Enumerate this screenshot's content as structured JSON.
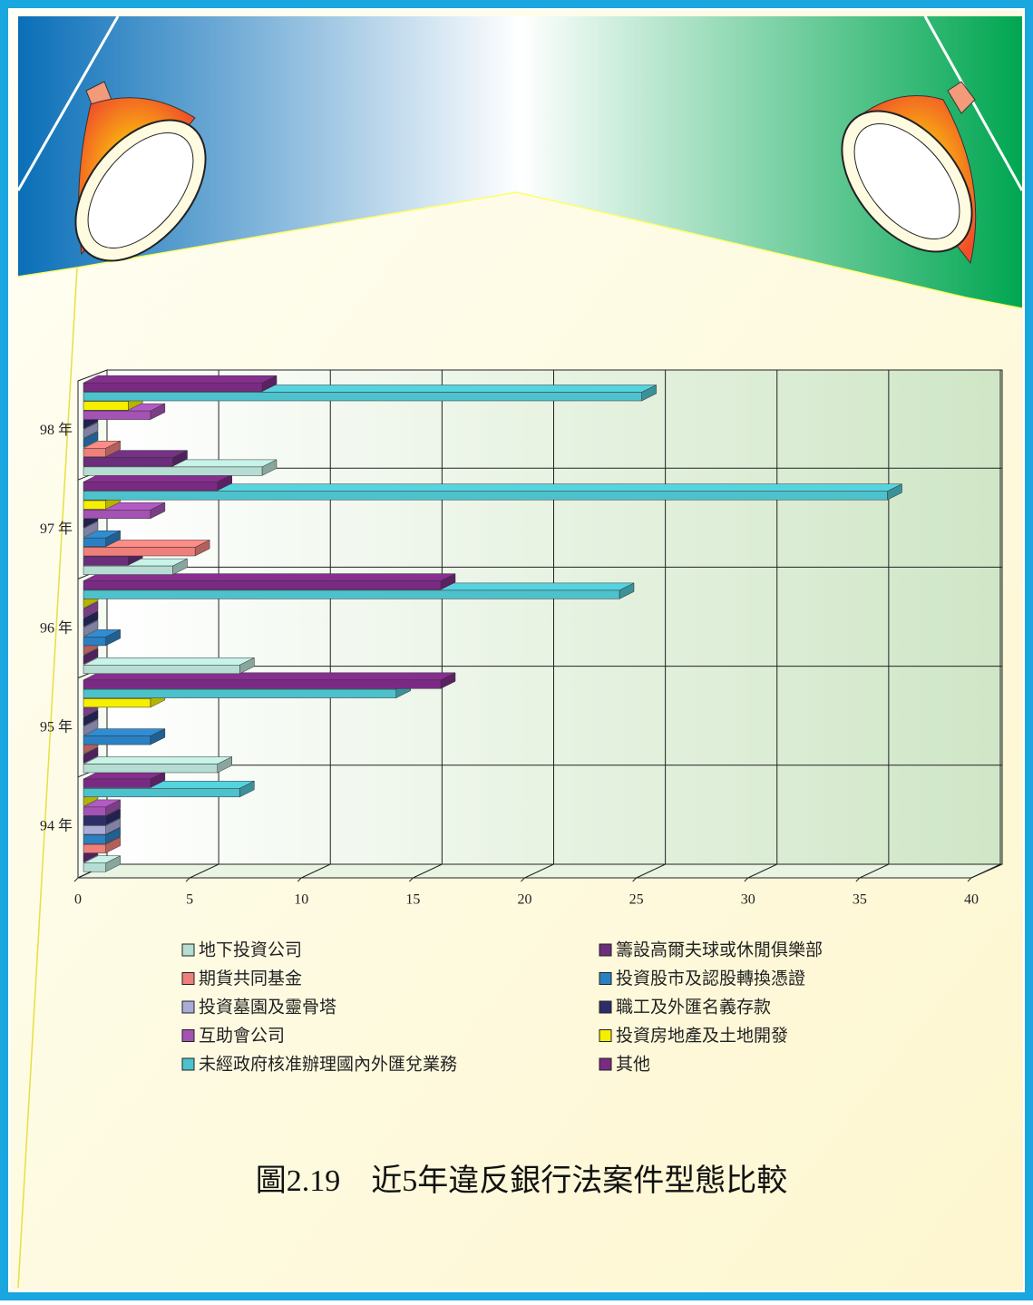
{
  "chart_data": {
    "type": "bar",
    "orientation": "horizontal",
    "title": "圖2.19　近5年違反銀行法案件型態比較",
    "categories": [
      "94 年",
      "95 年",
      "96 年",
      "97 年",
      "98 年"
    ],
    "series": [
      {
        "name": "地下投資公司",
        "color": "#b5ddd3",
        "values": [
          1,
          6,
          7,
          4,
          8
        ]
      },
      {
        "name": "籌設高爾夫球或休閒俱樂部",
        "color": "#6b2d7c",
        "values": [
          0,
          0,
          0,
          2,
          4
        ]
      },
      {
        "name": "期貨共同基金",
        "color": "#ee7f7a",
        "values": [
          1,
          0,
          0,
          5,
          1
        ]
      },
      {
        "name": "投資股市及認股轉換憑證",
        "color": "#2a80c2",
        "values": [
          1,
          3,
          1,
          1,
          0
        ]
      },
      {
        "name": "投資墓園及靈骨塔",
        "color": "#a9abd9",
        "values": [
          1,
          0,
          0,
          0,
          0
        ]
      },
      {
        "name": "職工及外匯名義存款",
        "color": "#2d2d6b",
        "values": [
          1,
          0,
          0,
          0,
          0
        ]
      },
      {
        "name": "互助會公司",
        "color": "#a452b3",
        "values": [
          1,
          0,
          0,
          3,
          3
        ]
      },
      {
        "name": "投資房地產及土地開發",
        "color": "#f4f000",
        "values": [
          0,
          3,
          0,
          1,
          2
        ]
      },
      {
        "name": "未經政府核准辦理國內外匯兌業務",
        "color": "#4dc1cc",
        "values": [
          7,
          14,
          24,
          36,
          25
        ]
      },
      {
        "name": "其他",
        "color": "#7b2a84",
        "values": [
          3,
          16,
          16,
          6,
          8
        ]
      }
    ],
    "xlim": [
      0,
      40
    ],
    "xticks": [
      0,
      5,
      10,
      15,
      20,
      25,
      30,
      35,
      40
    ],
    "grid": true
  }
}
